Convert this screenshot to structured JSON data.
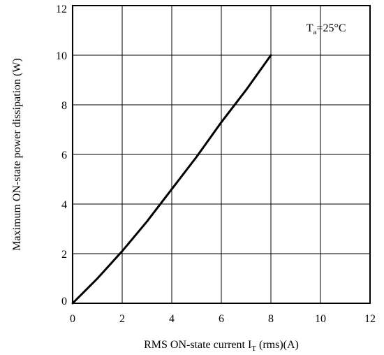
{
  "chart_data": {
    "type": "line",
    "title": "",
    "xlabel": "RMS ON-state current",
    "xlabel_symbol": "I",
    "xlabel_subscript": "T",
    "xlabel_suffix": " (rms)(A)",
    "ylabel": "Maximum ON-state power dissipation (W)",
    "xlim": [
      0,
      12
    ],
    "ylim": [
      0,
      12
    ],
    "xticks": [
      "0",
      "2",
      "4",
      "6",
      "8",
      "10",
      "12"
    ],
    "yticks": [
      "0",
      "2",
      "4",
      "6",
      "8",
      "10",
      "12"
    ],
    "grid": true,
    "annotation": {
      "symbol": "T",
      "subscript": "a",
      "text": "=25°C",
      "x": 10.5,
      "y": 11.1
    },
    "series": [
      {
        "x": [
          0,
          1,
          2,
          3,
          4,
          5,
          6,
          7,
          8
        ],
        "y": [
          0,
          1.0,
          2.1,
          3.3,
          4.6,
          5.9,
          7.3,
          8.6,
          10.0
        ]
      }
    ]
  }
}
